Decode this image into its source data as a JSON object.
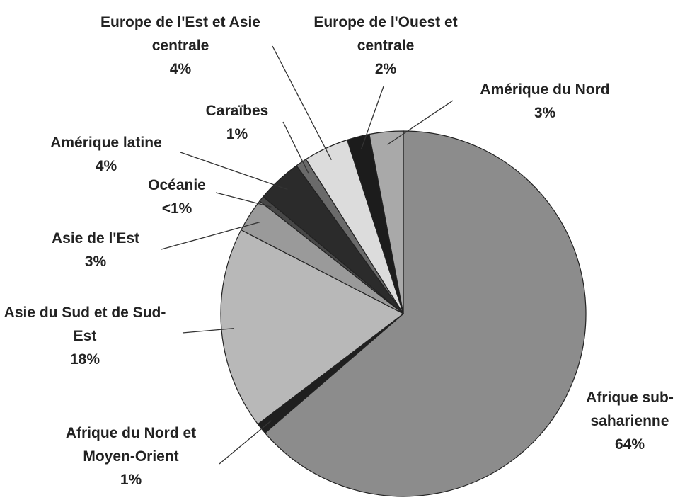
{
  "chart_data": {
    "type": "pie",
    "categories": [
      "Afrique sub-saharienne",
      "Afrique du Nord et Moyen-Orient",
      "Asie du Sud et de Sud-Est",
      "Asie de l'Est",
      "Océanie",
      "Amérique latine",
      "Caraïbes",
      "Europe de l'Est et Asie centrale",
      "Europe de l'Ouest et centrale",
      "Amérique du Nord"
    ],
    "values": [
      64,
      1,
      18,
      3,
      0.5,
      4,
      1,
      4,
      2,
      3
    ],
    "value_labels": [
      "64%",
      "1%",
      "18%",
      "3%",
      "<1%",
      "4%",
      "1%",
      "4%",
      "2%",
      "3%"
    ],
    "colors": [
      "#8c8c8c",
      "#1f1f1f",
      "#b8b8b8",
      "#9a9a9a",
      "#474747",
      "#2b2b2b",
      "#6a6a6a",
      "#dcdcdc",
      "#1c1c1c",
      "#a9a9a9"
    ]
  }
}
